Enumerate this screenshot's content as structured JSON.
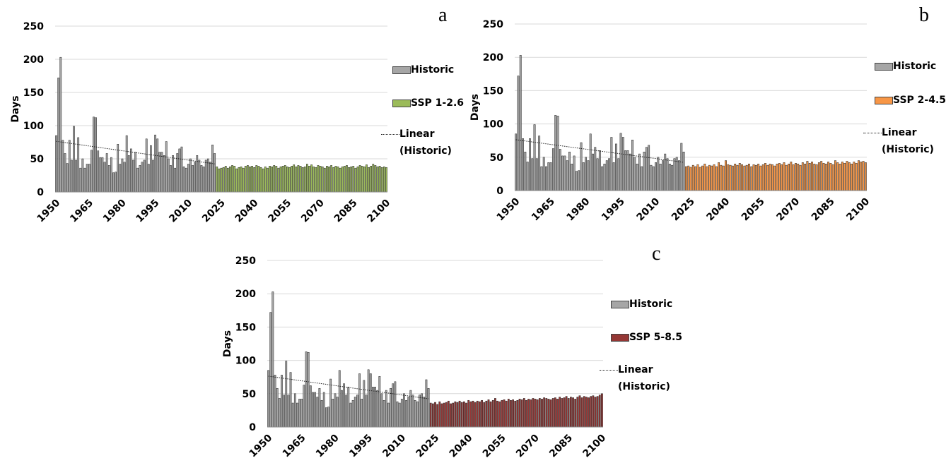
{
  "chart_data": [
    {
      "type": "bar",
      "label": "a",
      "y_label": "Days",
      "grid": true,
      "ylim": [
        0,
        250
      ],
      "yticks": [
        0,
        50,
        100,
        150,
        200,
        250
      ],
      "xlim": [
        1949.5,
        2100.5
      ],
      "xticks": [
        1950,
        1965,
        1980,
        1995,
        2010,
        2025,
        2040,
        2055,
        2070,
        2085,
        2100
      ],
      "trendline_name": "Linear (Historic)",
      "series": [
        {
          "name": "Historic",
          "color": "#a6a6a6",
          "x": [
            1950,
            1951,
            1952,
            1953,
            1954,
            1955,
            1956,
            1957,
            1958,
            1959,
            1960,
            1961,
            1962,
            1963,
            1964,
            1965,
            1966,
            1967,
            1968,
            1969,
            1970,
            1971,
            1972,
            1973,
            1974,
            1975,
            1976,
            1977,
            1978,
            1979,
            1980,
            1981,
            1982,
            1983,
            1984,
            1985,
            1986,
            1987,
            1988,
            1989,
            1990,
            1991,
            1992,
            1993,
            1994,
            1995,
            1996,
            1997,
            1998,
            1999,
            2000,
            2001,
            2002,
            2003,
            2004,
            2005,
            2006,
            2007,
            2008,
            2009,
            2010,
            2011,
            2012,
            2013,
            2014,
            2015,
            2016,
            2017,
            2018,
            2019,
            2020,
            2021,
            2022
          ],
          "values": [
            85,
            172,
            203,
            78,
            58,
            43,
            78,
            48,
            99,
            48,
            82,
            36,
            50,
            36,
            42,
            42,
            63,
            113,
            112,
            62,
            52,
            52,
            45,
            58,
            40,
            52,
            29,
            30,
            72,
            42,
            50,
            45,
            85,
            55,
            65,
            48,
            60,
            36,
            40,
            45,
            48,
            80,
            42,
            70,
            48,
            86,
            80,
            60,
            60,
            55,
            76,
            50,
            40,
            55,
            36,
            58,
            65,
            68,
            38,
            36,
            42,
            50,
            40,
            45,
            55,
            48,
            40,
            38,
            48,
            50,
            45,
            71,
            58
          ]
        },
        {
          "name": "SSP 1-2.6",
          "color": "#9bbb59",
          "x": [
            2023,
            2024,
            2025,
            2026,
            2027,
            2028,
            2029,
            2030,
            2031,
            2032,
            2033,
            2034,
            2035,
            2036,
            2037,
            2038,
            2039,
            2040,
            2041,
            2042,
            2043,
            2044,
            2045,
            2046,
            2047,
            2048,
            2049,
            2050,
            2051,
            2052,
            2053,
            2054,
            2055,
            2056,
            2057,
            2058,
            2059,
            2060,
            2061,
            2062,
            2063,
            2064,
            2065,
            2066,
            2067,
            2068,
            2069,
            2070,
            2071,
            2072,
            2073,
            2074,
            2075,
            2076,
            2077,
            2078,
            2079,
            2080,
            2081,
            2082,
            2083,
            2084,
            2085,
            2086,
            2087,
            2088,
            2089,
            2090,
            2091,
            2092,
            2093,
            2094,
            2095,
            2096,
            2097,
            2098,
            2099,
            2100
          ],
          "values": [
            38,
            35,
            36,
            37,
            39,
            36,
            38,
            40,
            39,
            35,
            37,
            38,
            36,
            39,
            40,
            38,
            39,
            37,
            40,
            39,
            37,
            35,
            38,
            36,
            39,
            38,
            40,
            39,
            36,
            38,
            39,
            40,
            38,
            37,
            39,
            41,
            38,
            40,
            39,
            37,
            38,
            42,
            39,
            41,
            38,
            37,
            40,
            39,
            38,
            36,
            39,
            38,
            40,
            37,
            39,
            38,
            36,
            38,
            39,
            40,
            37,
            38,
            39,
            36,
            38,
            40,
            39,
            38,
            41,
            37,
            39,
            42,
            40,
            38,
            39,
            37,
            38,
            37
          ]
        }
      ]
    },
    {
      "type": "bar",
      "label": "b",
      "y_label": "Days",
      "grid": true,
      "ylim": [
        0,
        250
      ],
      "yticks": [
        0,
        50,
        100,
        150,
        200,
        250
      ],
      "xlim": [
        1949.5,
        2100.5
      ],
      "xticks": [
        1950,
        1965,
        1980,
        1995,
        2010,
        2025,
        2040,
        2055,
        2070,
        2085,
        2100
      ],
      "trendline_name": "Linear (Historic)",
      "series": [
        {
          "name": "Historic",
          "color": "#a6a6a6",
          "x": [
            1950,
            1951,
            1952,
            1953,
            1954,
            1955,
            1956,
            1957,
            1958,
            1959,
            1960,
            1961,
            1962,
            1963,
            1964,
            1965,
            1966,
            1967,
            1968,
            1969,
            1970,
            1971,
            1972,
            1973,
            1974,
            1975,
            1976,
            1977,
            1978,
            1979,
            1980,
            1981,
            1982,
            1983,
            1984,
            1985,
            1986,
            1987,
            1988,
            1989,
            1990,
            1991,
            1992,
            1993,
            1994,
            1995,
            1996,
            1997,
            1998,
            1999,
            2000,
            2001,
            2002,
            2003,
            2004,
            2005,
            2006,
            2007,
            2008,
            2009,
            2010,
            2011,
            2012,
            2013,
            2014,
            2015,
            2016,
            2017,
            2018,
            2019,
            2020,
            2021,
            2022
          ],
          "values": [
            85,
            172,
            203,
            78,
            58,
            43,
            78,
            48,
            99,
            48,
            82,
            36,
            50,
            36,
            42,
            42,
            63,
            113,
            112,
            62,
            52,
            52,
            45,
            58,
            40,
            52,
            29,
            30,
            72,
            42,
            50,
            45,
            85,
            55,
            65,
            48,
            60,
            36,
            40,
            45,
            48,
            80,
            42,
            70,
            48,
            86,
            80,
            60,
            60,
            55,
            76,
            50,
            40,
            55,
            36,
            58,
            65,
            68,
            38,
            36,
            42,
            50,
            40,
            45,
            55,
            48,
            40,
            38,
            48,
            50,
            45,
            71,
            58
          ]
        },
        {
          "name": "SSP 2-4.5",
          "color": "#f79646",
          "x": [
            2023,
            2024,
            2025,
            2026,
            2027,
            2028,
            2029,
            2030,
            2031,
            2032,
            2033,
            2034,
            2035,
            2036,
            2037,
            2038,
            2039,
            2040,
            2041,
            2042,
            2043,
            2044,
            2045,
            2046,
            2047,
            2048,
            2049,
            2050,
            2051,
            2052,
            2053,
            2054,
            2055,
            2056,
            2057,
            2058,
            2059,
            2060,
            2061,
            2062,
            2063,
            2064,
            2065,
            2066,
            2067,
            2068,
            2069,
            2070,
            2071,
            2072,
            2073,
            2074,
            2075,
            2076,
            2077,
            2078,
            2079,
            2080,
            2081,
            2082,
            2083,
            2084,
            2085,
            2086,
            2087,
            2088,
            2089,
            2090,
            2091,
            2092,
            2093,
            2094,
            2095,
            2096,
            2097,
            2098,
            2099,
            2100
          ],
          "values": [
            36,
            37,
            35,
            38,
            36,
            39,
            35,
            37,
            40,
            36,
            38,
            37,
            39,
            36,
            42,
            38,
            37,
            45,
            39,
            38,
            37,
            40,
            38,
            41,
            39,
            37,
            38,
            40,
            36,
            39,
            38,
            40,
            37,
            39,
            41,
            38,
            40,
            39,
            37,
            40,
            41,
            39,
            42,
            38,
            40,
            43,
            39,
            41,
            40,
            38,
            42,
            40,
            44,
            41,
            43,
            40,
            39,
            42,
            44,
            41,
            40,
            43,
            41,
            39,
            45,
            42,
            40,
            43,
            41,
            44,
            42,
            40,
            43,
            41,
            45,
            43,
            44,
            42
          ]
        }
      ]
    },
    {
      "type": "bar",
      "label": "c",
      "y_label": "Days",
      "grid": true,
      "ylim": [
        0,
        250
      ],
      "yticks": [
        0,
        50,
        100,
        150,
        200,
        250
      ],
      "xlim": [
        1949.5,
        2100.5
      ],
      "xticks": [
        1950,
        1965,
        1980,
        1995,
        2010,
        2025,
        2040,
        2055,
        2070,
        2085,
        2100
      ],
      "trendline_name": "Linear (Historic)",
      "series": [
        {
          "name": "Historic",
          "color": "#a6a6a6",
          "x": [
            1950,
            1951,
            1952,
            1953,
            1954,
            1955,
            1956,
            1957,
            1958,
            1959,
            1960,
            1961,
            1962,
            1963,
            1964,
            1965,
            1966,
            1967,
            1968,
            1969,
            1970,
            1971,
            1972,
            1973,
            1974,
            1975,
            1976,
            1977,
            1978,
            1979,
            1980,
            1981,
            1982,
            1983,
            1984,
            1985,
            1986,
            1987,
            1988,
            1989,
            1990,
            1991,
            1992,
            1993,
            1994,
            1995,
            1996,
            1997,
            1998,
            1999,
            2000,
            2001,
            2002,
            2003,
            2004,
            2005,
            2006,
            2007,
            2008,
            2009,
            2010,
            2011,
            2012,
            2013,
            2014,
            2015,
            2016,
            2017,
            2018,
            2019,
            2020,
            2021,
            2022
          ],
          "values": [
            85,
            172,
            203,
            78,
            58,
            43,
            78,
            48,
            99,
            48,
            82,
            36,
            50,
            36,
            42,
            42,
            63,
            113,
            112,
            62,
            52,
            52,
            45,
            58,
            40,
            52,
            29,
            30,
            72,
            42,
            50,
            45,
            85,
            55,
            65,
            48,
            60,
            36,
            40,
            45,
            48,
            80,
            42,
            70,
            48,
            86,
            80,
            60,
            60,
            55,
            76,
            50,
            40,
            55,
            36,
            58,
            65,
            68,
            38,
            36,
            42,
            50,
            40,
            45,
            55,
            48,
            40,
            38,
            48,
            50,
            45,
            71,
            58
          ]
        },
        {
          "name": "SSP 5-8.5",
          "color": "#953735",
          "x": [
            2023,
            2024,
            2025,
            2026,
            2027,
            2028,
            2029,
            2030,
            2031,
            2032,
            2033,
            2034,
            2035,
            2036,
            2037,
            2038,
            2039,
            2040,
            2041,
            2042,
            2043,
            2044,
            2045,
            2046,
            2047,
            2048,
            2049,
            2050,
            2051,
            2052,
            2053,
            2054,
            2055,
            2056,
            2057,
            2058,
            2059,
            2060,
            2061,
            2062,
            2063,
            2064,
            2065,
            2066,
            2067,
            2068,
            2069,
            2070,
            2071,
            2072,
            2073,
            2074,
            2075,
            2076,
            2077,
            2078,
            2079,
            2080,
            2081,
            2082,
            2083,
            2084,
            2085,
            2086,
            2087,
            2088,
            2089,
            2090,
            2091,
            2092,
            2093,
            2094,
            2095,
            2096,
            2097,
            2098,
            2099,
            2100
          ],
          "values": [
            36,
            35,
            37,
            34,
            38,
            35,
            36,
            37,
            39,
            35,
            36,
            38,
            37,
            39,
            37,
            38,
            36,
            40,
            38,
            39,
            37,
            39,
            38,
            40,
            37,
            39,
            41,
            38,
            40,
            43,
            39,
            38,
            40,
            41,
            39,
            42,
            40,
            41,
            39,
            40,
            42,
            41,
            43,
            40,
            42,
            41,
            43,
            42,
            41,
            43,
            42,
            44,
            43,
            42,
            41,
            43,
            44,
            42,
            45,
            43,
            44,
            46,
            43,
            45,
            44,
            42,
            45,
            47,
            44,
            46,
            45,
            44,
            46,
            47,
            45,
            46,
            48,
            50
          ]
        }
      ]
    }
  ]
}
